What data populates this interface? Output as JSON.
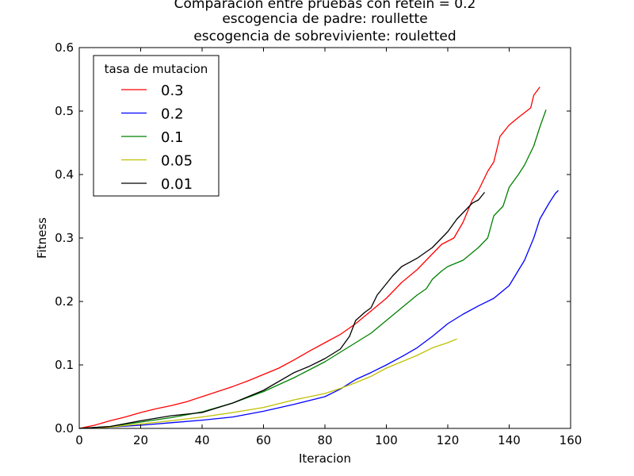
{
  "chart_data": {
    "type": "line",
    "title_lines": [
      "Comparacion entre pruebas con retein = 0.2",
      "escogencia de padre: roullette",
      "escogencia de sobreviviente: rouletted"
    ],
    "xlabel": "Iteracion",
    "ylabel": "Fitness",
    "xlim": [
      0,
      160
    ],
    "ylim": [
      0,
      0.6
    ],
    "xticks": [
      0,
      20,
      40,
      60,
      80,
      100,
      120,
      140,
      160
    ],
    "yticks": [
      0.0,
      0.1,
      0.2,
      0.3,
      0.4,
      0.5,
      0.6
    ],
    "xtick_labels": [
      "0",
      "20",
      "40",
      "60",
      "80",
      "100",
      "120",
      "140",
      "160"
    ],
    "ytick_labels": [
      "0.0",
      "0.1",
      "0.2",
      "0.3",
      "0.4",
      "0.5",
      "0.6"
    ],
    "grid": false,
    "legend": {
      "title": "tasa de mutacion",
      "position": "top-left"
    },
    "series": [
      {
        "name": "0.3",
        "color": "#ff0000",
        "x": [
          0,
          5,
          10,
          15,
          20,
          25,
          30,
          35,
          40,
          45,
          50,
          55,
          60,
          65,
          70,
          75,
          80,
          85,
          90,
          95,
          100,
          105,
          110,
          115,
          118,
          122,
          125,
          128,
          130,
          133,
          135,
          137,
          140,
          143,
          147,
          148,
          150
        ],
        "y": [
          0.0,
          0.005,
          0.012,
          0.018,
          0.025,
          0.031,
          0.036,
          0.042,
          0.05,
          0.058,
          0.066,
          0.075,
          0.085,
          0.095,
          0.108,
          0.122,
          0.135,
          0.148,
          0.165,
          0.185,
          0.205,
          0.23,
          0.25,
          0.275,
          0.29,
          0.3,
          0.325,
          0.36,
          0.375,
          0.405,
          0.42,
          0.46,
          0.478,
          0.49,
          0.505,
          0.525,
          0.538
        ]
      },
      {
        "name": "0.2",
        "color": "#0000ff",
        "x": [
          0,
          10,
          20,
          30,
          40,
          50,
          60,
          70,
          80,
          85,
          90,
          95,
          100,
          105,
          110,
          115,
          120,
          125,
          130,
          135,
          140,
          145,
          148,
          150,
          153,
          155,
          156
        ],
        "y": [
          0.0,
          0.002,
          0.005,
          0.009,
          0.013,
          0.018,
          0.027,
          0.038,
          0.05,
          0.062,
          0.077,
          0.088,
          0.1,
          0.113,
          0.127,
          0.145,
          0.165,
          0.18,
          0.193,
          0.205,
          0.225,
          0.265,
          0.3,
          0.33,
          0.355,
          0.37,
          0.375
        ]
      },
      {
        "name": "0.1",
        "color": "#008000",
        "x": [
          0,
          10,
          20,
          30,
          40,
          50,
          60,
          70,
          80,
          85,
          90,
          95,
          100,
          105,
          110,
          113,
          115,
          118,
          120,
          125,
          130,
          133,
          135,
          138,
          140,
          143,
          145,
          148,
          150,
          152
        ],
        "y": [
          0.0,
          0.003,
          0.01,
          0.017,
          0.026,
          0.04,
          0.058,
          0.08,
          0.105,
          0.12,
          0.135,
          0.15,
          0.17,
          0.19,
          0.21,
          0.22,
          0.235,
          0.248,
          0.255,
          0.265,
          0.285,
          0.3,
          0.335,
          0.35,
          0.38,
          0.4,
          0.415,
          0.445,
          0.475,
          0.502
        ]
      },
      {
        "name": "0.05",
        "color": "#bfbf00",
        "x": [
          0,
          10,
          20,
          30,
          40,
          50,
          60,
          70,
          80,
          85,
          90,
          95,
          100,
          105,
          110,
          115,
          120,
          123
        ],
        "y": [
          0.0,
          0.002,
          0.007,
          0.012,
          0.018,
          0.025,
          0.033,
          0.045,
          0.055,
          0.063,
          0.072,
          0.082,
          0.095,
          0.105,
          0.115,
          0.127,
          0.135,
          0.141
        ]
      },
      {
        "name": "0.01",
        "color": "#000000",
        "x": [
          0,
          10,
          20,
          30,
          40,
          50,
          60,
          70,
          75,
          80,
          85,
          88,
          90,
          93,
          95,
          97,
          100,
          102,
          105,
          110,
          115,
          118,
          120,
          123,
          125,
          128,
          130,
          132
        ],
        "y": [
          0.0,
          0.003,
          0.012,
          0.02,
          0.025,
          0.04,
          0.06,
          0.088,
          0.098,
          0.11,
          0.125,
          0.145,
          0.17,
          0.183,
          0.19,
          0.21,
          0.228,
          0.24,
          0.255,
          0.268,
          0.285,
          0.3,
          0.31,
          0.33,
          0.34,
          0.355,
          0.36,
          0.372
        ]
      }
    ]
  }
}
